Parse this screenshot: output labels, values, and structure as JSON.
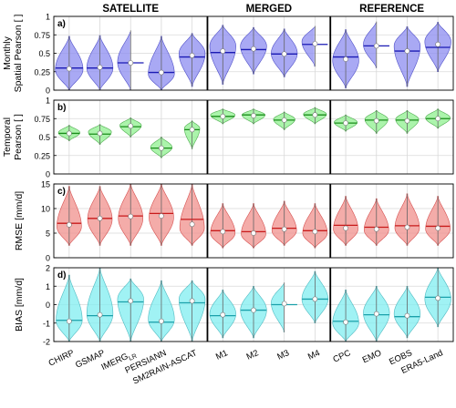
{
  "figure": {
    "group_titles": [
      "SATELLITE",
      "MERGED",
      "REFERENCE"
    ],
    "colors": {
      "panel_a": "#8c8cf0",
      "panel_b": "#8ff08f",
      "panel_c": "#f0908c",
      "panel_d": "#80eef0",
      "line_a": "#1a1ab4",
      "line_b": "#1a8c1a",
      "line_c": "#c81a1a",
      "line_d": "#1aa0aa",
      "grid": "#d9d9d9"
    }
  },
  "chart_data": {
    "type": "violin",
    "categories": [
      "CHIRP",
      "GSMAP",
      "IMERG_LR",
      "PERSIANN",
      "SM2RAIN-ASCAT",
      "M1",
      "M2",
      "M3",
      "M4",
      "CPC",
      "EMO",
      "EOBS",
      "ERA5-Land"
    ],
    "category_labels": [
      {
        "main": "CHIRP",
        "sub": ""
      },
      {
        "main": "GSMAP",
        "sub": ""
      },
      {
        "main": "IMERG",
        "sub": "LR"
      },
      {
        "main": "PERSIANN",
        "sub": ""
      },
      {
        "main": "SM2RAIN-ASCAT",
        "sub": ""
      },
      {
        "main": "M1",
        "sub": ""
      },
      {
        "main": "M2",
        "sub": ""
      },
      {
        "main": "M3",
        "sub": ""
      },
      {
        "main": "M4",
        "sub": ""
      },
      {
        "main": "CPC",
        "sub": ""
      },
      {
        "main": "EMO",
        "sub": ""
      },
      {
        "main": "EOBS",
        "sub": ""
      },
      {
        "main": "ERA5-Land",
        "sub": ""
      }
    ],
    "groups": [
      {
        "name": "SATELLITE",
        "members": [
          "CHIRP",
          "GSMAP",
          "IMERG_LR",
          "PERSIANN",
          "SM2RAIN-ASCAT"
        ]
      },
      {
        "name": "MERGED",
        "members": [
          "M1",
          "M2",
          "M3",
          "M4"
        ]
      },
      {
        "name": "REFERENCE",
        "members": [
          "CPC",
          "EMO",
          "EOBS",
          "ERA5-Land"
        ]
      }
    ],
    "panels": [
      {
        "label": "a)",
        "ylabel": [
          "Monthly",
          "Spatial Pearson [ ]"
        ],
        "ylim": [
          0,
          1
        ],
        "yticks": [
          0,
          0.25,
          0.5,
          0.75,
          1
        ],
        "ytick_labels": [
          "0",
          "0.25",
          "0.5",
          "0.75",
          "1"
        ],
        "violins": [
          {
            "min": 0.0,
            "max": 0.73,
            "mean": 0.3,
            "median": 0.29,
            "mode": 0.28,
            "width": 0.9
          },
          {
            "min": 0.0,
            "max": 0.74,
            "mean": 0.3,
            "median": 0.31,
            "mode": 0.3,
            "width": 0.85
          },
          {
            "min": 0.0,
            "max": 0.81,
            "mean": 0.37,
            "median": 0.37,
            "mode": 0.38,
            "width": 0.85
          },
          {
            "min": 0.0,
            "max": 0.73,
            "mean": 0.24,
            "median": 0.24,
            "mode": 0.22,
            "width": 0.85
          },
          {
            "min": 0.05,
            "max": 0.77,
            "mean": 0.45,
            "median": 0.47,
            "mode": 0.5,
            "width": 0.85
          },
          {
            "min": 0.08,
            "max": 0.88,
            "mean": 0.51,
            "median": 0.53,
            "mode": 0.6,
            "width": 0.85
          },
          {
            "min": 0.22,
            "max": 0.85,
            "mean": 0.55,
            "median": 0.56,
            "mode": 0.6,
            "width": 0.85
          },
          {
            "min": 0.18,
            "max": 0.83,
            "mean": 0.49,
            "median": 0.49,
            "mode": 0.5,
            "width": 0.85
          },
          {
            "min": 0.32,
            "max": 0.87,
            "mean": 0.62,
            "median": 0.63,
            "mode": 0.66,
            "width": 0.85
          },
          {
            "min": 0.03,
            "max": 0.82,
            "mean": 0.45,
            "median": 0.42,
            "mode": 0.4,
            "width": 0.85
          },
          {
            "min": 0.3,
            "max": 0.93,
            "mean": 0.6,
            "median": 0.6,
            "mode": 0.62,
            "width": 0.85
          },
          {
            "min": 0.05,
            "max": 0.86,
            "mean": 0.53,
            "median": 0.53,
            "mode": 0.6,
            "width": 0.85
          },
          {
            "min": 0.25,
            "max": 0.92,
            "mean": 0.58,
            "median": 0.62,
            "mode": 0.66,
            "width": 0.85
          }
        ]
      },
      {
        "label": "b)",
        "ylabel": [
          "Temporal",
          "Pearson [ ]"
        ],
        "ylim": [
          0,
          1
        ],
        "yticks": [
          0,
          0.25,
          0.5,
          0.75,
          1
        ],
        "ytick_labels": [
          "0",
          "0.25",
          "0.5",
          "0.75",
          "1"
        ],
        "violins": [
          {
            "min": 0.45,
            "max": 0.66,
            "mean": 0.55,
            "median": 0.55,
            "mode": 0.56,
            "width": 0.7
          },
          {
            "min": 0.4,
            "max": 0.67,
            "mean": 0.54,
            "median": 0.55,
            "mode": 0.57,
            "width": 0.75
          },
          {
            "min": 0.5,
            "max": 0.76,
            "mean": 0.64,
            "median": 0.65,
            "mode": 0.66,
            "width": 0.7
          },
          {
            "min": 0.22,
            "max": 0.5,
            "mean": 0.35,
            "median": 0.35,
            "mode": 0.36,
            "width": 0.7
          },
          {
            "min": 0.34,
            "max": 0.72,
            "mean": 0.6,
            "median": 0.6,
            "mode": 0.62,
            "width": 0.5
          },
          {
            "min": 0.68,
            "max": 0.88,
            "mean": 0.78,
            "median": 0.78,
            "mode": 0.8,
            "width": 0.8
          },
          {
            "min": 0.68,
            "max": 0.88,
            "mean": 0.8,
            "median": 0.79,
            "mode": 0.8,
            "width": 0.75
          },
          {
            "min": 0.6,
            "max": 0.84,
            "mean": 0.73,
            "median": 0.73,
            "mode": 0.74,
            "width": 0.7
          },
          {
            "min": 0.68,
            "max": 0.9,
            "mean": 0.8,
            "median": 0.8,
            "mode": 0.81,
            "width": 0.75
          },
          {
            "min": 0.58,
            "max": 0.8,
            "mean": 0.69,
            "median": 0.69,
            "mode": 0.7,
            "width": 0.75
          },
          {
            "min": 0.55,
            "max": 0.86,
            "mean": 0.73,
            "median": 0.72,
            "mode": 0.74,
            "width": 0.75
          },
          {
            "min": 0.55,
            "max": 0.86,
            "mean": 0.73,
            "median": 0.72,
            "mode": 0.74,
            "width": 0.75
          },
          {
            "min": 0.62,
            "max": 0.88,
            "mean": 0.75,
            "median": 0.75,
            "mode": 0.76,
            "width": 0.8
          }
        ]
      },
      {
        "label": "c)",
        "ylabel": [
          "RMSE [mm/d]"
        ],
        "ylim": [
          0,
          15
        ],
        "yticks": [
          0,
          5,
          10,
          15
        ],
        "ytick_labels": [
          "0",
          "5",
          "10",
          "15"
        ],
        "violins": [
          {
            "min": 2.5,
            "max": 14.5,
            "mean": 7.0,
            "median": 6.7,
            "mode": 6.3,
            "width": 0.8
          },
          {
            "min": 2.5,
            "max": 14.5,
            "mean": 8.0,
            "median": 8.0,
            "mode": 7.8,
            "width": 0.8
          },
          {
            "min": 2.5,
            "max": 15.0,
            "mean": 8.5,
            "median": 8.4,
            "mode": 8.0,
            "width": 0.8
          },
          {
            "min": 2.5,
            "max": 15.0,
            "mean": 9.0,
            "median": 8.5,
            "mode": 8.2,
            "width": 0.8
          },
          {
            "min": 2.5,
            "max": 15.0,
            "mean": 7.8,
            "median": 6.8,
            "mode": 6.0,
            "width": 0.8
          },
          {
            "min": 2.0,
            "max": 11.0,
            "mean": 5.5,
            "median": 5.3,
            "mode": 5.0,
            "width": 0.8
          },
          {
            "min": 2.0,
            "max": 11.0,
            "mean": 5.3,
            "median": 5.0,
            "mode": 4.8,
            "width": 0.8
          },
          {
            "min": 2.5,
            "max": 11.5,
            "mean": 6.0,
            "median": 5.8,
            "mode": 5.5,
            "width": 0.8
          },
          {
            "min": 2.0,
            "max": 11.0,
            "mean": 5.5,
            "median": 5.3,
            "mode": 5.0,
            "width": 0.8
          },
          {
            "min": 2.5,
            "max": 12.5,
            "mean": 6.6,
            "median": 6.0,
            "mode": 5.8,
            "width": 0.8
          },
          {
            "min": 2.5,
            "max": 12.0,
            "mean": 6.2,
            "median": 5.8,
            "mode": 5.6,
            "width": 0.8
          },
          {
            "min": 2.5,
            "max": 13.0,
            "mean": 6.5,
            "median": 6.2,
            "mode": 6.0,
            "width": 0.8
          },
          {
            "min": 2.5,
            "max": 12.5,
            "mean": 6.4,
            "median": 6.0,
            "mode": 5.8,
            "width": 0.8
          }
        ]
      },
      {
        "label": "d)",
        "ylabel": [
          "BIAS [mm/d]"
        ],
        "ylim": [
          -2,
          2
        ],
        "yticks": [
          -2,
          -1,
          0,
          1,
          2
        ],
        "ytick_labels": [
          "-2",
          "-1",
          "0",
          "1",
          "2"
        ],
        "violins": [
          {
            "min": -2.0,
            "max": 1.6,
            "mean": -0.85,
            "median": -0.9,
            "mode": -0.85,
            "width": 0.85
          },
          {
            "min": -2.0,
            "max": 2.0,
            "mean": -0.6,
            "median": -0.55,
            "mode": -0.5,
            "width": 0.85
          },
          {
            "min": -2.0,
            "max": 1.4,
            "mean": 0.15,
            "median": 0.2,
            "mode": 0.3,
            "width": 0.85
          },
          {
            "min": -2.0,
            "max": 1.3,
            "mean": -0.95,
            "median": -0.9,
            "mode": -0.8,
            "width": 0.85
          },
          {
            "min": -2.0,
            "max": 1.3,
            "mean": 0.1,
            "median": 0.2,
            "mode": 0.3,
            "width": 0.85
          },
          {
            "min": -1.8,
            "max": 0.8,
            "mean": -0.6,
            "median": -0.55,
            "mode": -0.5,
            "width": 0.85
          },
          {
            "min": -1.8,
            "max": 1.0,
            "mean": -0.3,
            "median": -0.3,
            "mode": -0.3,
            "width": 0.85
          },
          {
            "min": -1.5,
            "max": 1.2,
            "mean": 0.0,
            "median": 0.05,
            "mode": 0.1,
            "width": 0.85
          },
          {
            "min": -1.0,
            "max": 1.8,
            "mean": 0.3,
            "median": 0.3,
            "mode": 0.3,
            "width": 0.85
          },
          {
            "min": -2.0,
            "max": 0.8,
            "mean": -0.9,
            "median": -0.95,
            "mode": -1.0,
            "width": 0.85
          },
          {
            "min": -2.0,
            "max": 1.0,
            "mean": -0.55,
            "median": -0.5,
            "mode": -0.45,
            "width": 0.85
          },
          {
            "min": -1.8,
            "max": 1.0,
            "mean": -0.65,
            "median": -0.6,
            "mode": -0.5,
            "width": 0.85
          },
          {
            "min": -1.2,
            "max": 2.0,
            "mean": 0.4,
            "median": 0.35,
            "mode": 0.3,
            "width": 0.85
          }
        ]
      }
    ]
  }
}
